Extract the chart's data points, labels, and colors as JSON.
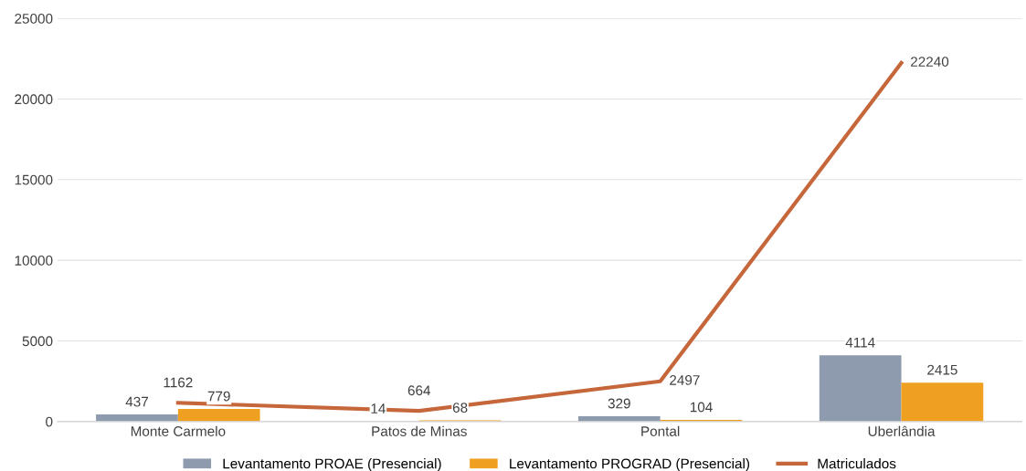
{
  "chart_data": {
    "type": "bar",
    "categories": [
      "Monte Carmelo",
      "Patos de Minas",
      "Pontal",
      "Uberlândia"
    ],
    "series": [
      {
        "name": "Levantamento PROAE (Presencial)",
        "color": "#8e9aae",
        "values": [
          437,
          14,
          329,
          4114
        ]
      },
      {
        "name": "Levantamento PROGRAD (Presencial)",
        "color": "#f0a020",
        "values": [
          779,
          68,
          104,
          2415
        ]
      },
      {
        "name": "Matriculados",
        "type": "line",
        "color": "#c5673a",
        "values": [
          1162,
          664,
          2497,
          22240
        ]
      }
    ],
    "ylim": [
      0,
      25000
    ],
    "yticks": [
      0,
      5000,
      10000,
      15000,
      20000,
      25000
    ],
    "grid": "y",
    "legend": "bottom",
    "data_labels": true,
    "marker": "none",
    "line_style": "solid"
  }
}
